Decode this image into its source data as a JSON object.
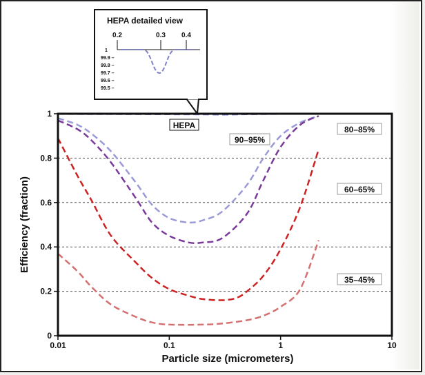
{
  "chart_data": {
    "type": "line",
    "title": "",
    "xlabel": "Particle size (micrometers)",
    "ylabel": "Efficiency (fraction)",
    "xscale": "log",
    "xlim": [
      0.01,
      10
    ],
    "ylim": [
      0,
      1
    ],
    "x_ticks": [
      "0.01",
      "0.1",
      "1",
      "10"
    ],
    "y_ticks": [
      "0",
      "0.2",
      "0.4",
      "0.6",
      "0.8",
      "1"
    ],
    "grid": "horizontal dashed",
    "series": [
      {
        "name": "HEPA",
        "color": "#8080c8",
        "x": [
          0.01,
          0.02,
          0.05,
          0.1,
          0.2,
          0.3,
          0.4,
          0.6,
          1,
          2.2
        ],
        "y": [
          0.999,
          0.9985,
          0.998,
          0.9975,
          0.997,
          0.996,
          0.997,
          0.998,
          0.999,
          1.0
        ]
      },
      {
        "name": "90–95%",
        "color": "#9a9ad8",
        "x": [
          0.01,
          0.015,
          0.02,
          0.03,
          0.05,
          0.07,
          0.1,
          0.15,
          0.2,
          0.3,
          0.5,
          0.7,
          1,
          1.5,
          2.2
        ],
        "y": [
          0.98,
          0.95,
          0.91,
          0.83,
          0.69,
          0.59,
          0.53,
          0.51,
          0.52,
          0.56,
          0.68,
          0.8,
          0.9,
          0.96,
          0.99
        ]
      },
      {
        "name": "80–85%",
        "color": "#7a3a9a",
        "x": [
          0.01,
          0.015,
          0.02,
          0.03,
          0.05,
          0.07,
          0.1,
          0.15,
          0.2,
          0.3,
          0.5,
          0.7,
          1,
          1.5,
          2.2
        ],
        "y": [
          0.97,
          0.93,
          0.88,
          0.78,
          0.62,
          0.51,
          0.45,
          0.42,
          0.42,
          0.44,
          0.55,
          0.7,
          0.85,
          0.95,
          0.99
        ]
      },
      {
        "name": "60–65%",
        "color": "#cc2222",
        "x": [
          0.01,
          0.015,
          0.02,
          0.03,
          0.05,
          0.07,
          0.1,
          0.15,
          0.2,
          0.3,
          0.4,
          0.5,
          0.7,
          1,
          1.5,
          2.2
        ],
        "y": [
          0.89,
          0.72,
          0.61,
          0.45,
          0.33,
          0.26,
          0.21,
          0.18,
          0.165,
          0.16,
          0.17,
          0.2,
          0.27,
          0.39,
          0.58,
          0.84
        ]
      },
      {
        "name": "35–45%",
        "color": "#d47070",
        "x": [
          0.01,
          0.015,
          0.02,
          0.03,
          0.05,
          0.07,
          0.1,
          0.2,
          0.3,
          0.5,
          0.7,
          1,
          1.5,
          2.2
        ],
        "y": [
          0.37,
          0.29,
          0.22,
          0.14,
          0.085,
          0.06,
          0.05,
          0.05,
          0.055,
          0.07,
          0.09,
          0.13,
          0.21,
          0.43
        ]
      }
    ],
    "labels": {
      "hepa": "HEPA",
      "s90": "90–95%",
      "s80": "80–85%",
      "s60": "60–65%",
      "s35": "35–45%"
    },
    "inset": {
      "title": "HEPA detailed view",
      "x_ticks": [
        "0.2",
        "0.3",
        "0.4"
      ],
      "y_ticks": [
        "1",
        "99.9 –",
        "99.8 –",
        "99.7 –",
        "99.6 –",
        "99.5 –"
      ]
    }
  }
}
